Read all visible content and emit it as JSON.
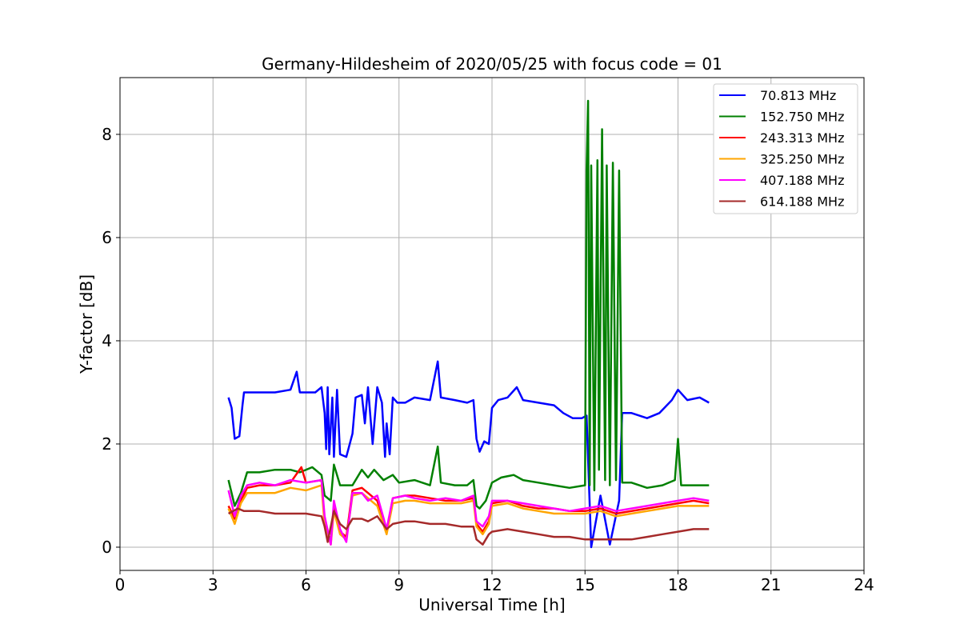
{
  "chart_data": {
    "type": "line",
    "title": "Germany-Hildesheim of 2020/05/25 with focus code = 01",
    "xlabel": "Universal Time [h]",
    "ylabel": "Y-factor [dB]",
    "xlim": [
      0,
      24
    ],
    "ylim": [
      -0.45,
      9.1
    ],
    "xticks": [
      0,
      3,
      6,
      9,
      12,
      15,
      18,
      21,
      24
    ],
    "yticks": [
      0,
      2,
      4,
      6,
      8
    ],
    "grid": true,
    "legend_position": "top-right",
    "series": [
      {
        "name": " 70.813 MHz",
        "color": "#0000ff",
        "points": [
          [
            3.5,
            2.9
          ],
          [
            3.6,
            2.7
          ],
          [
            3.7,
            2.1
          ],
          [
            3.85,
            2.15
          ],
          [
            3.95,
            2.75
          ],
          [
            4.0,
            3.0
          ],
          [
            4.5,
            3.0
          ],
          [
            5.0,
            3.0
          ],
          [
            5.5,
            3.05
          ],
          [
            5.7,
            3.4
          ],
          [
            5.8,
            3.0
          ],
          [
            6.3,
            3.0
          ],
          [
            6.5,
            3.1
          ],
          [
            6.6,
            2.6
          ],
          [
            6.65,
            1.9
          ],
          [
            6.7,
            3.1
          ],
          [
            6.75,
            1.8
          ],
          [
            6.85,
            2.9
          ],
          [
            6.9,
            1.75
          ],
          [
            7.0,
            3.05
          ],
          [
            7.1,
            1.8
          ],
          [
            7.3,
            1.75
          ],
          [
            7.5,
            2.2
          ],
          [
            7.6,
            2.9
          ],
          [
            7.8,
            2.95
          ],
          [
            7.9,
            2.4
          ],
          [
            8.0,
            3.1
          ],
          [
            8.15,
            2.0
          ],
          [
            8.3,
            3.1
          ],
          [
            8.45,
            2.8
          ],
          [
            8.55,
            1.75
          ],
          [
            8.6,
            2.4
          ],
          [
            8.7,
            1.8
          ],
          [
            8.8,
            2.9
          ],
          [
            8.95,
            2.8
          ],
          [
            9.2,
            2.8
          ],
          [
            9.5,
            2.9
          ],
          [
            10.0,
            2.85
          ],
          [
            10.25,
            3.6
          ],
          [
            10.35,
            2.9
          ],
          [
            10.8,
            2.85
          ],
          [
            11.2,
            2.8
          ],
          [
            11.4,
            2.85
          ],
          [
            11.5,
            2.1
          ],
          [
            11.6,
            1.85
          ],
          [
            11.75,
            2.05
          ],
          [
            11.9,
            2.0
          ],
          [
            12.0,
            2.7
          ],
          [
            12.2,
            2.85
          ],
          [
            12.5,
            2.9
          ],
          [
            12.8,
            3.1
          ],
          [
            13.0,
            2.85
          ],
          [
            13.5,
            2.8
          ],
          [
            14.0,
            2.75
          ],
          [
            14.3,
            2.6
          ],
          [
            14.6,
            2.5
          ],
          [
            14.9,
            2.5
          ],
          [
            15.05,
            2.55
          ],
          [
            15.2,
            0.0
          ],
          [
            15.5,
            1.0
          ],
          [
            15.8,
            0.05
          ],
          [
            16.1,
            0.9
          ],
          [
            16.2,
            2.6
          ],
          [
            16.5,
            2.6
          ],
          [
            17.0,
            2.5
          ],
          [
            17.4,
            2.6
          ],
          [
            17.8,
            2.85
          ],
          [
            18.0,
            3.05
          ],
          [
            18.3,
            2.85
          ],
          [
            18.7,
            2.9
          ],
          [
            19.0,
            2.8
          ]
        ]
      },
      {
        "name": "152.750 MHz",
        "color": "#008000",
        "points": [
          [
            3.5,
            1.3
          ],
          [
            3.7,
            0.8
          ],
          [
            3.9,
            1.05
          ],
          [
            4.1,
            1.45
          ],
          [
            4.5,
            1.45
          ],
          [
            5.0,
            1.5
          ],
          [
            5.5,
            1.5
          ],
          [
            5.8,
            1.45
          ],
          [
            6.2,
            1.55
          ],
          [
            6.5,
            1.4
          ],
          [
            6.6,
            1.0
          ],
          [
            6.8,
            0.9
          ],
          [
            6.9,
            1.6
          ],
          [
            7.1,
            1.2
          ],
          [
            7.5,
            1.2
          ],
          [
            7.8,
            1.5
          ],
          [
            8.0,
            1.35
          ],
          [
            8.2,
            1.5
          ],
          [
            8.5,
            1.3
          ],
          [
            8.8,
            1.4
          ],
          [
            9.0,
            1.25
          ],
          [
            9.5,
            1.3
          ],
          [
            10.0,
            1.2
          ],
          [
            10.25,
            1.95
          ],
          [
            10.35,
            1.25
          ],
          [
            10.8,
            1.2
          ],
          [
            11.2,
            1.2
          ],
          [
            11.4,
            1.3
          ],
          [
            11.5,
            0.8
          ],
          [
            11.6,
            0.75
          ],
          [
            11.8,
            0.9
          ],
          [
            12.0,
            1.25
          ],
          [
            12.3,
            1.35
          ],
          [
            12.7,
            1.4
          ],
          [
            13.0,
            1.3
          ],
          [
            13.5,
            1.25
          ],
          [
            14.0,
            1.2
          ],
          [
            14.5,
            1.15
          ],
          [
            15.0,
            1.2
          ],
          [
            15.05,
            7.3
          ],
          [
            15.1,
            8.65
          ],
          [
            15.15,
            1.2
          ],
          [
            15.2,
            7.4
          ],
          [
            15.3,
            1.1
          ],
          [
            15.4,
            7.5
          ],
          [
            15.45,
            1.5
          ],
          [
            15.55,
            8.1
          ],
          [
            15.65,
            1.3
          ],
          [
            15.7,
            7.4
          ],
          [
            15.8,
            1.2
          ],
          [
            15.9,
            7.45
          ],
          [
            16.0,
            1.3
          ],
          [
            16.1,
            7.3
          ],
          [
            16.2,
            1.25
          ],
          [
            16.5,
            1.25
          ],
          [
            17.0,
            1.15
          ],
          [
            17.5,
            1.2
          ],
          [
            17.9,
            1.3
          ],
          [
            18.0,
            2.1
          ],
          [
            18.1,
            1.2
          ],
          [
            18.5,
            1.2
          ],
          [
            19.0,
            1.2
          ]
        ]
      },
      {
        "name": "243.313 MHz",
        "color": "#ff0000",
        "points": [
          [
            3.5,
            0.8
          ],
          [
            3.7,
            0.55
          ],
          [
            3.9,
            0.9
          ],
          [
            4.1,
            1.15
          ],
          [
            4.5,
            1.2
          ],
          [
            5.0,
            1.2
          ],
          [
            5.5,
            1.25
          ],
          [
            5.85,
            1.55
          ],
          [
            6.0,
            1.25
          ],
          [
            6.5,
            1.3
          ],
          [
            6.6,
            0.5
          ],
          [
            6.8,
            0.1
          ],
          [
            6.9,
            0.8
          ],
          [
            7.1,
            0.3
          ],
          [
            7.3,
            0.2
          ],
          [
            7.5,
            1.1
          ],
          [
            7.8,
            1.15
          ],
          [
            8.0,
            1.05
          ],
          [
            8.3,
            0.9
          ],
          [
            8.6,
            0.3
          ],
          [
            8.8,
            0.95
          ],
          [
            9.2,
            1.0
          ],
          [
            9.5,
            1.0
          ],
          [
            10.0,
            0.95
          ],
          [
            10.5,
            0.9
          ],
          [
            11.0,
            0.9
          ],
          [
            11.4,
            0.95
          ],
          [
            11.5,
            0.45
          ],
          [
            11.7,
            0.3
          ],
          [
            11.9,
            0.5
          ],
          [
            12.0,
            0.85
          ],
          [
            12.5,
            0.9
          ],
          [
            13.0,
            0.8
          ],
          [
            13.5,
            0.75
          ],
          [
            14.0,
            0.75
          ],
          [
            14.5,
            0.7
          ],
          [
            15.0,
            0.7
          ],
          [
            15.5,
            0.75
          ],
          [
            16.0,
            0.65
          ],
          [
            16.5,
            0.7
          ],
          [
            17.0,
            0.75
          ],
          [
            17.5,
            0.8
          ],
          [
            18.0,
            0.85
          ],
          [
            18.5,
            0.9
          ],
          [
            19.0,
            0.85
          ]
        ]
      },
      {
        "name": "325.250 MHz",
        "color": "#ffa500",
        "points": [
          [
            3.5,
            0.75
          ],
          [
            3.7,
            0.45
          ],
          [
            3.9,
            0.85
          ],
          [
            4.1,
            1.05
          ],
          [
            4.5,
            1.05
          ],
          [
            5.0,
            1.05
          ],
          [
            5.5,
            1.15
          ],
          [
            6.0,
            1.1
          ],
          [
            6.5,
            1.2
          ],
          [
            6.6,
            0.4
          ],
          [
            6.8,
            0.05
          ],
          [
            6.9,
            0.7
          ],
          [
            7.1,
            0.25
          ],
          [
            7.3,
            0.15
          ],
          [
            7.5,
            1.0
          ],
          [
            7.8,
            1.05
          ],
          [
            8.0,
            0.95
          ],
          [
            8.3,
            0.8
          ],
          [
            8.6,
            0.25
          ],
          [
            8.8,
            0.85
          ],
          [
            9.2,
            0.9
          ],
          [
            9.5,
            0.9
          ],
          [
            10.0,
            0.85
          ],
          [
            10.5,
            0.85
          ],
          [
            11.0,
            0.85
          ],
          [
            11.4,
            0.9
          ],
          [
            11.5,
            0.4
          ],
          [
            11.7,
            0.25
          ],
          [
            11.9,
            0.45
          ],
          [
            12.0,
            0.8
          ],
          [
            12.5,
            0.85
          ],
          [
            13.0,
            0.75
          ],
          [
            13.5,
            0.7
          ],
          [
            14.0,
            0.65
          ],
          [
            14.5,
            0.65
          ],
          [
            15.0,
            0.65
          ],
          [
            15.5,
            0.7
          ],
          [
            16.0,
            0.6
          ],
          [
            16.5,
            0.65
          ],
          [
            17.0,
            0.7
          ],
          [
            17.5,
            0.75
          ],
          [
            18.0,
            0.8
          ],
          [
            18.5,
            0.8
          ],
          [
            19.0,
            0.8
          ]
        ]
      },
      {
        "name": "407.188 MHz",
        "color": "#ff00ff",
        "points": [
          [
            3.5,
            1.1
          ],
          [
            3.7,
            0.6
          ],
          [
            3.9,
            1.0
          ],
          [
            4.1,
            1.2
          ],
          [
            4.5,
            1.25
          ],
          [
            5.0,
            1.2
          ],
          [
            5.5,
            1.3
          ],
          [
            6.0,
            1.25
          ],
          [
            6.5,
            1.3
          ],
          [
            6.6,
            0.6
          ],
          [
            6.8,
            0.05
          ],
          [
            6.9,
            0.9
          ],
          [
            7.1,
            0.35
          ],
          [
            7.3,
            0.1
          ],
          [
            7.5,
            1.05
          ],
          [
            7.8,
            1.05
          ],
          [
            8.0,
            0.9
          ],
          [
            8.3,
            1.0
          ],
          [
            8.6,
            0.35
          ],
          [
            8.8,
            0.95
          ],
          [
            9.2,
            1.0
          ],
          [
            9.5,
            0.95
          ],
          [
            10.0,
            0.9
          ],
          [
            10.5,
            0.95
          ],
          [
            11.0,
            0.9
          ],
          [
            11.4,
            1.0
          ],
          [
            11.5,
            0.5
          ],
          [
            11.7,
            0.4
          ],
          [
            11.9,
            0.6
          ],
          [
            12.0,
            0.9
          ],
          [
            12.5,
            0.9
          ],
          [
            13.0,
            0.85
          ],
          [
            13.5,
            0.8
          ],
          [
            14.0,
            0.75
          ],
          [
            14.5,
            0.7
          ],
          [
            15.0,
            0.75
          ],
          [
            15.5,
            0.8
          ],
          [
            16.0,
            0.7
          ],
          [
            16.5,
            0.75
          ],
          [
            17.0,
            0.8
          ],
          [
            17.5,
            0.85
          ],
          [
            18.0,
            0.9
          ],
          [
            18.5,
            0.95
          ],
          [
            19.0,
            0.9
          ]
        ]
      },
      {
        "name": "614.188 MHz",
        "color": "#a52a2a",
        "points": [
          [
            3.5,
            0.65
          ],
          [
            3.8,
            0.75
          ],
          [
            4.0,
            0.7
          ],
          [
            4.5,
            0.7
          ],
          [
            5.0,
            0.65
          ],
          [
            5.5,
            0.65
          ],
          [
            6.0,
            0.65
          ],
          [
            6.5,
            0.6
          ],
          [
            6.6,
            0.4
          ],
          [
            6.7,
            0.1
          ],
          [
            6.9,
            0.7
          ],
          [
            7.1,
            0.45
          ],
          [
            7.3,
            0.35
          ],
          [
            7.5,
            0.55
          ],
          [
            7.8,
            0.55
          ],
          [
            8.0,
            0.5
          ],
          [
            8.3,
            0.6
          ],
          [
            8.6,
            0.35
          ],
          [
            8.8,
            0.45
          ],
          [
            9.2,
            0.5
          ],
          [
            9.5,
            0.5
          ],
          [
            10.0,
            0.45
          ],
          [
            10.5,
            0.45
          ],
          [
            11.0,
            0.4
          ],
          [
            11.4,
            0.4
          ],
          [
            11.5,
            0.15
          ],
          [
            11.7,
            0.05
          ],
          [
            11.9,
            0.25
          ],
          [
            12.0,
            0.3
          ],
          [
            12.5,
            0.35
          ],
          [
            13.0,
            0.3
          ],
          [
            13.5,
            0.25
          ],
          [
            14.0,
            0.2
          ],
          [
            14.5,
            0.2
          ],
          [
            15.0,
            0.15
          ],
          [
            15.5,
            0.15
          ],
          [
            16.0,
            0.15
          ],
          [
            16.5,
            0.15
          ],
          [
            17.0,
            0.2
          ],
          [
            17.5,
            0.25
          ],
          [
            18.0,
            0.3
          ],
          [
            18.5,
            0.35
          ],
          [
            19.0,
            0.35
          ]
        ]
      }
    ]
  }
}
